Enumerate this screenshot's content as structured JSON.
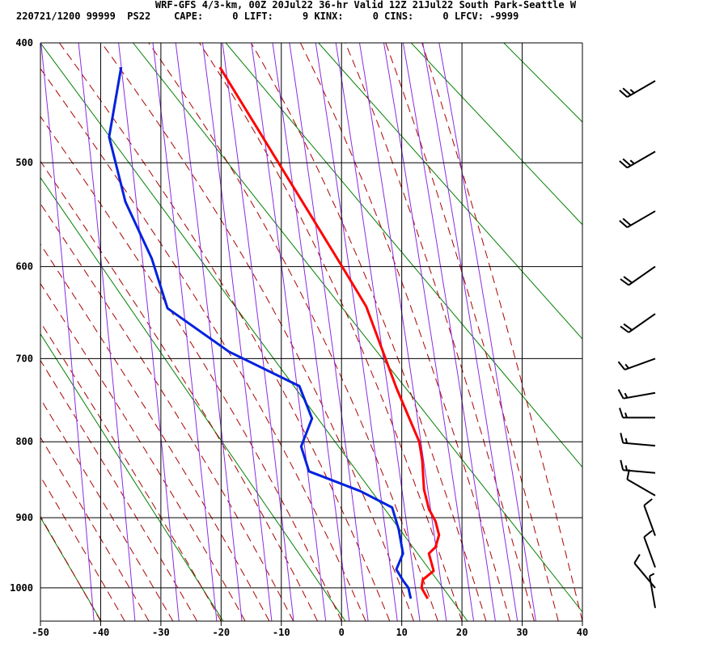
{
  "header": {
    "title": "WRF-GFS 4/3-km, 00Z 20Jul22 36-hr Valid 12Z 21Jul22 South Park-Seattle W",
    "stats": "220721/1200 99999  PS22    CAPE:     0 LIFT:     9 KINX:     0 CINS:     0 LFCV: -9999"
  },
  "chart_data": {
    "type": "skewt",
    "xlim": [
      -50,
      40
    ],
    "xticks": [
      -50,
      -40,
      -30,
      -20,
      -10,
      0,
      10,
      20,
      30,
      40
    ],
    "ylim": [
      400,
      1050
    ],
    "yticks": [
      400,
      500,
      600,
      700,
      800,
      900,
      1000
    ],
    "temperature": {
      "color": "#ff0000",
      "x": [
        -20.2,
        0.1,
        4.1,
        9.1,
        12.9,
        13.4,
        13.7,
        14.5,
        15.6,
        16.2,
        15.6,
        14.5,
        15.3,
        13.5,
        13.3,
        14.3
      ],
      "y": [
        419,
        600,
        642,
        734,
        800,
        824,
        862,
        888,
        905,
        924,
        941,
        950,
        975,
        988,
        1000,
        1016
      ]
    },
    "dewpoint": {
      "color": "#0022dd",
      "x": [
        -36.6,
        -38.6,
        -35.9,
        -31.5,
        -28.9,
        -18.7,
        -7.0,
        -4.9,
        -6.7,
        -5.4,
        3.1,
        8.4,
        9.5,
        10.2,
        9.1,
        10.2,
        11.1,
        11.5
      ],
      "y": [
        419,
        477,
        536,
        592,
        644,
        692,
        732,
        771,
        806,
        838,
        864,
        886,
        916,
        950,
        973,
        989,
        1000,
        1016
      ]
    },
    "wind": {
      "pressure": [
        430,
        490,
        545,
        600,
        650,
        700,
        740,
        770,
        805,
        840,
        870,
        925,
        970,
        1000,
        1030
      ],
      "direction": [
        240,
        240,
        240,
        235,
        235,
        250,
        260,
        270,
        275,
        275,
        300,
        340,
        340,
        320,
        350
      ],
      "speed": [
        25,
        25,
        20,
        20,
        20,
        15,
        15,
        15,
        15,
        15,
        10,
        10,
        10,
        10,
        5
      ]
    }
  }
}
